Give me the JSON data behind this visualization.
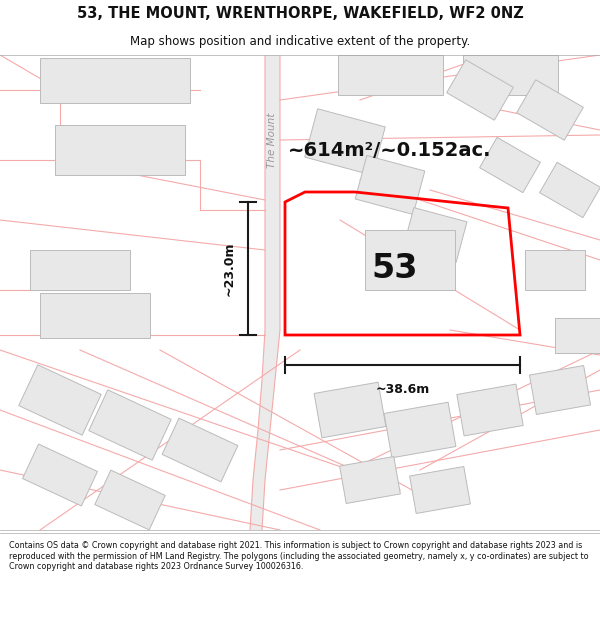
{
  "title_line1": "53, THE MOUNT, WRENTHORPE, WAKEFIELD, WF2 0NZ",
  "title_line2": "Map shows position and indicative extent of the property.",
  "footer_text": "Contains OS data © Crown copyright and database right 2021. This information is subject to Crown copyright and database rights 2023 and is reproduced with the permission of HM Land Registry. The polygons (including the associated geometry, namely x, y co-ordinates) are subject to Crown copyright and database rights 2023 Ordnance Survey 100026316.",
  "area_label": "~614m²/~0.152ac.",
  "number_label": "53",
  "dim_height": "~23.0m",
  "dim_width": "~38.6m",
  "map_bg": "#f9f9f9",
  "road_fill": "#ececec",
  "building_fill": "#e8e8e8",
  "building_stroke": "#bbbbbb",
  "plot_stroke": "#ff0000",
  "road_line_color": "#f5aaaa",
  "dim_line_color": "#1a1a1a",
  "road_label": "The Mount",
  "header_footer_sep_color": "#aaaaaa"
}
